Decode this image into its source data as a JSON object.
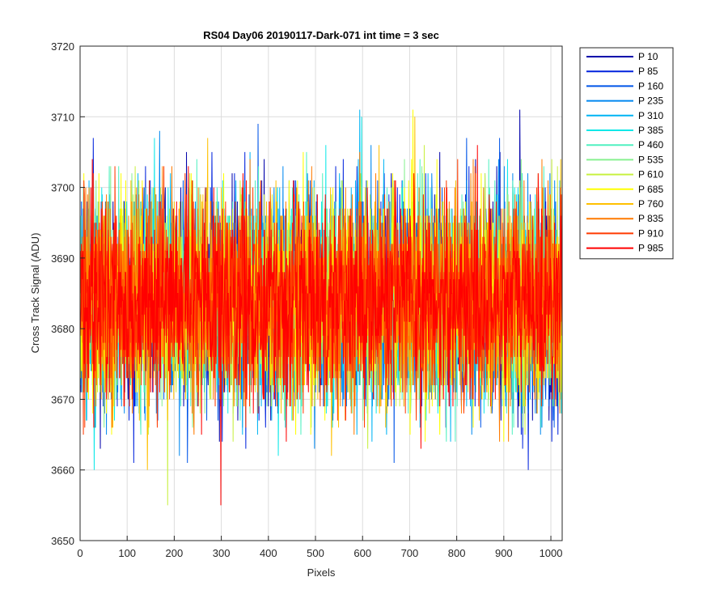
{
  "chart_data": {
    "type": "line",
    "title": "RS04 Day06 20190117-Dark-071 int time = 3 sec",
    "xlabel": "Pixels",
    "ylabel": "Cross Track Signal (ADU)",
    "xlim": [
      0,
      1024
    ],
    "ylim": [
      3650,
      3720
    ],
    "xticks": [
      "0",
      "100",
      "200",
      "300",
      "400",
      "500",
      "600",
      "700",
      "800",
      "900",
      "1000"
    ],
    "yticks": [
      "3650",
      "3660",
      "3670",
      "3680",
      "3690",
      "3700",
      "3710",
      "3720"
    ],
    "grid": true,
    "legend_position": "outside-top-right",
    "noise_model": {
      "mean": 3684,
      "std": 7,
      "min_observed": 3655,
      "max_observed": 3712
    },
    "series": [
      {
        "name": "P 10",
        "color": "#0000aa"
      },
      {
        "name": "P 85",
        "color": "#0022dd"
      },
      {
        "name": "P 160",
        "color": "#0055e8"
      },
      {
        "name": "P 235",
        "color": "#0088f0"
      },
      {
        "name": "P 310",
        "color": "#00b4f4"
      },
      {
        "name": "P 385",
        "color": "#10e8e8"
      },
      {
        "name": "P 460",
        "color": "#50f0c0"
      },
      {
        "name": "P 535",
        "color": "#88f090"
      },
      {
        "name": "P 610",
        "color": "#c8f040"
      },
      {
        "name": "P 685",
        "color": "#ffff00"
      },
      {
        "name": "P 760",
        "color": "#ffc000"
      },
      {
        "name": "P 835",
        "color": "#ff7a00"
      },
      {
        "name": "P 910",
        "color": "#ff3a00"
      },
      {
        "name": "P 985",
        "color": "#ff0000"
      }
    ]
  }
}
